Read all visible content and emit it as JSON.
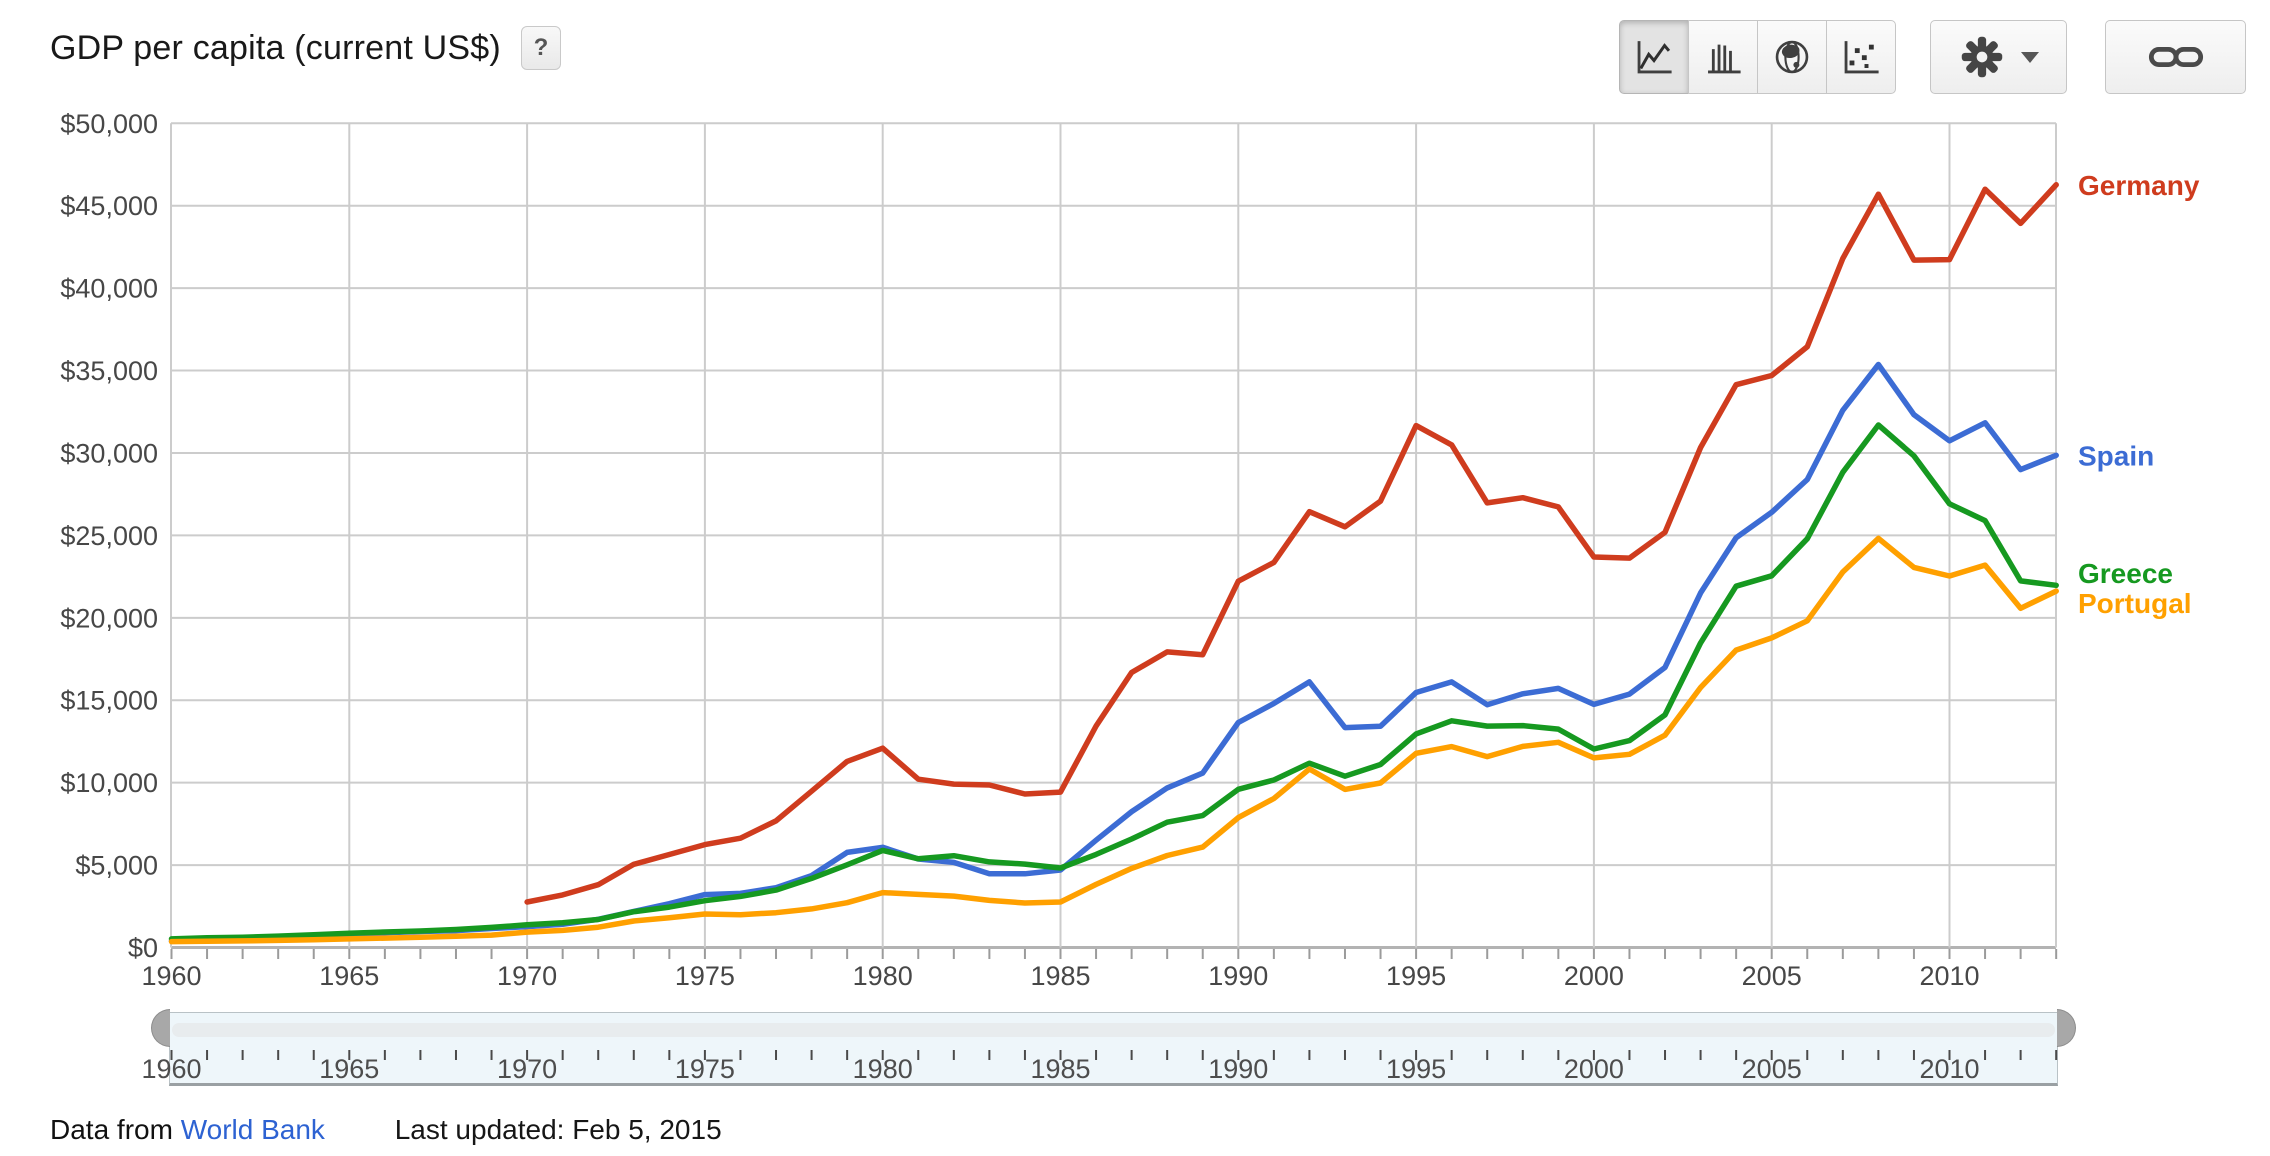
{
  "header": {
    "title": "GDP per capita (current US$)",
    "help_label": "?"
  },
  "toolbar": {
    "chart_types": [
      {
        "name": "line-chart",
        "selected": true
      },
      {
        "name": "column-chart",
        "selected": false
      },
      {
        "name": "map",
        "selected": false
      },
      {
        "name": "scatter-chart",
        "selected": false
      }
    ],
    "settings": {
      "icon": "gear-icon",
      "has_dropdown": true
    },
    "share": {
      "icon": "chain-link-icon"
    }
  },
  "chart_data": {
    "type": "line",
    "title": "GDP per capita (current US$)",
    "xlabel": "",
    "ylabel": "",
    "ylim": [
      0,
      50000
    ],
    "ytick_step": 5000,
    "ytick_labels": [
      "$50,000",
      "$45,000",
      "$40,000",
      "$35,000",
      "$30,000",
      "$25,000",
      "$20,000",
      "$15,000",
      "$10,000",
      "$5,000",
      "$0"
    ],
    "x_range": [
      1960,
      2013
    ],
    "xticks": [
      1960,
      1965,
      1970,
      1975,
      1980,
      1985,
      1990,
      1995,
      2000,
      2005,
      2010
    ],
    "xtick_labels": [
      "1960",
      "1965",
      "1970",
      "1975",
      "1980",
      "1985",
      "1990",
      "1995",
      "2000",
      "2005",
      "2010"
    ],
    "grid": true,
    "legend_position": "right",
    "series": [
      {
        "name": "Germany",
        "color": "#cf3c1e",
        "x_start": 1970,
        "values": [
          2760,
          3190,
          3810,
          5050,
          5640,
          6240,
          6630,
          7680,
          9480,
          11290,
          12090,
          10210,
          9910,
          9860,
          9310,
          9430,
          13440,
          16680,
          17930,
          17760,
          22220,
          23360,
          26440,
          25520,
          27080,
          31660,
          30490,
          26970,
          27290,
          26730,
          23690,
          23620,
          25190,
          30330,
          34140,
          34700,
          36450,
          41800,
          45700,
          41700,
          41730,
          46000,
          43930,
          46270
        ]
      },
      {
        "name": "Spain",
        "color": "#3c6cd4",
        "x_start": 1960,
        "values": [
          396,
          450,
          520,
          609,
          675,
          774,
          890,
          968,
          1023,
          1150,
          1270,
          1405,
          1710,
          2190,
          2660,
          3210,
          3280,
          3630,
          4360,
          5770,
          6080,
          5370,
          5160,
          4480,
          4470,
          4700,
          6510,
          8240,
          9680,
          10580,
          13650,
          14810,
          16110,
          13340,
          13420,
          15470,
          16110,
          14730,
          15390,
          15720,
          14750,
          15370,
          16990,
          21510,
          24860,
          26400,
          28390,
          32590,
          35370,
          32330,
          30740,
          31830,
          28990,
          29860
        ]
      },
      {
        "name": "Greece",
        "color": "#169920",
        "x_start": 1960,
        "values": [
          520,
          590,
          620,
          690,
          770,
          860,
          940,
          1000,
          1090,
          1220,
          1380,
          1500,
          1700,
          2170,
          2450,
          2840,
          3100,
          3480,
          4190,
          5020,
          5890,
          5380,
          5570,
          5190,
          5060,
          4820,
          5650,
          6580,
          7600,
          8000,
          9600,
          10160,
          11180,
          10390,
          11100,
          12960,
          13750,
          13430,
          13460,
          13250,
          12040,
          12550,
          14110,
          18480,
          21920,
          22550,
          24800,
          28830,
          31700,
          29830,
          26920,
          25900,
          22240,
          21970
        ]
      },
      {
        "name": "Portugal",
        "color": "#ffa000",
        "x_start": 1960,
        "values": [
          360,
          380,
          400,
          430,
          470,
          520,
          570,
          620,
          680,
          750,
          935,
          1040,
          1230,
          1610,
          1810,
          2030,
          1990,
          2110,
          2340,
          2720,
          3330,
          3220,
          3120,
          2860,
          2700,
          2760,
          3830,
          4800,
          5580,
          6090,
          7880,
          9040,
          10830,
          9590,
          9980,
          11780,
          12190,
          11580,
          12200,
          12450,
          11500,
          11720,
          12880,
          15770,
          18040,
          18780,
          19820,
          22780,
          24820,
          23060,
          22540,
          23200,
          20580,
          21620
        ]
      }
    ]
  },
  "slider": {
    "year_range": [
      1960,
      2013
    ],
    "ticks": [
      {
        "year": 1960,
        "label": "1960"
      },
      {
        "year": 1965,
        "label": "1965"
      },
      {
        "year": 1970,
        "label": "1970"
      },
      {
        "year": 1975,
        "label": "1975"
      },
      {
        "year": 1980,
        "label": "1980"
      },
      {
        "year": 1985,
        "label": "1985"
      },
      {
        "year": 1990,
        "label": "1990"
      },
      {
        "year": 1995,
        "label": "1995"
      },
      {
        "year": 2000,
        "label": "2000"
      },
      {
        "year": 2005,
        "label": "2005"
      },
      {
        "year": 2010,
        "label": "2010"
      }
    ]
  },
  "footer": {
    "prefix": "Data from",
    "source_link": "World Bank",
    "last_updated": "Last updated: Feb 5, 2015"
  }
}
